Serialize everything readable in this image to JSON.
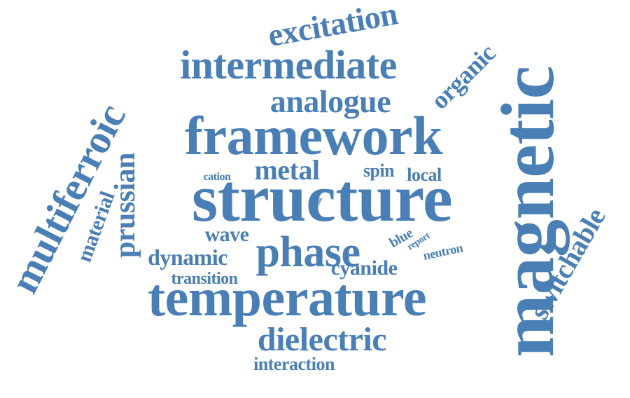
{
  "cloud": {
    "color": "#4a7fb5",
    "words": [
      {
        "id": "magnetic",
        "text": "magnetic"
      },
      {
        "id": "structure",
        "text": "structure"
      },
      {
        "id": "framework",
        "text": "framework"
      },
      {
        "id": "temperature",
        "text": "temperature"
      },
      {
        "id": "intermediate",
        "text": "intermediate"
      },
      {
        "id": "multiferroic",
        "text": "multiferroic"
      },
      {
        "id": "excitation",
        "text": "excitation"
      },
      {
        "id": "phase",
        "text": "phase"
      },
      {
        "id": "analogue",
        "text": "analogue"
      },
      {
        "id": "dielectric",
        "text": "dielectric"
      },
      {
        "id": "switchable",
        "text": "switchable"
      },
      {
        "id": "organic",
        "text": "organic"
      },
      {
        "id": "prussian",
        "text": "prussian"
      },
      {
        "id": "metal",
        "text": "metal"
      },
      {
        "id": "material",
        "text": "material"
      },
      {
        "id": "dynamic",
        "text": "dynamic"
      },
      {
        "id": "cyanide",
        "text": "cyanide"
      },
      {
        "id": "wave",
        "text": "wave"
      },
      {
        "id": "interaction",
        "text": "interaction"
      },
      {
        "id": "transition",
        "text": "transition"
      },
      {
        "id": "spin",
        "text": "spin"
      },
      {
        "id": "local",
        "text": "local"
      },
      {
        "id": "cation",
        "text": "cation"
      },
      {
        "id": "blue",
        "text": "blue"
      },
      {
        "id": "neutron",
        "text": "neutron"
      },
      {
        "id": "report",
        "text": "report"
      },
      {
        "id": "link",
        "text": "link"
      }
    ]
  }
}
